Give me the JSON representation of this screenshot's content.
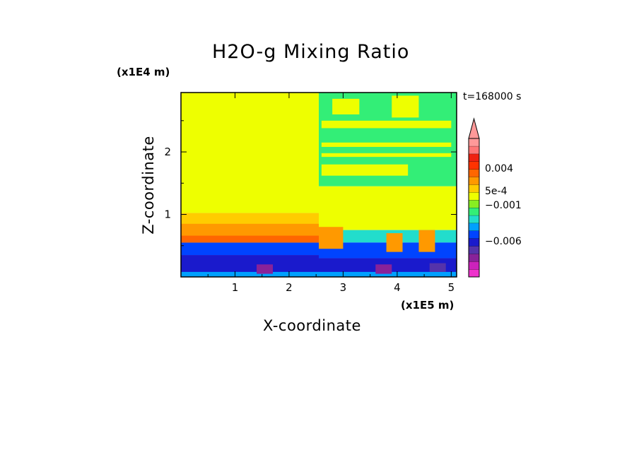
{
  "chart_data": {
    "type": "heatmap",
    "title": "H2O-g Mixing Ratio",
    "xlabel": "X-coordinate",
    "ylabel": "Z-coordinate",
    "x_exponent_label": "(x1E5 m)",
    "y_exponent_label": "(x1E4 m)",
    "time_label": "t=168000 s",
    "xlim": [
      0,
      5.1
    ],
    "ylim": [
      0,
      2.95
    ],
    "x_ticks": [
      1,
      2,
      3,
      4,
      5
    ],
    "y_ticks": [
      1,
      2
    ],
    "x_tick_labels": [
      "1",
      "2",
      "3",
      "4",
      "5"
    ],
    "y_tick_labels": [
      "1",
      "2"
    ],
    "colorbar": {
      "colors": [
        "#ee33cc",
        "#cc22bb",
        "#882299",
        "#5533aa",
        "#1a1acc",
        "#0044ff",
        "#00a0ff",
        "#22ddcc",
        "#33ee77",
        "#88ee22",
        "#eeff00",
        "#ffcc00",
        "#ff9900",
        "#ff6600",
        "#ff3300",
        "#ee2211",
        "#ff7777",
        "#ff9999"
      ],
      "tick_labels": [
        {
          "value": 0.004,
          "label": "0.004"
        },
        {
          "value": 0.0005,
          "label": "5e-4"
        },
        {
          "value": -0.001,
          "label": "−0.001"
        },
        {
          "value": -0.006,
          "label": "−0.006"
        }
      ],
      "extend": "max"
    },
    "regions": [
      {
        "x": [
          0,
          2.55
        ],
        "z": [
          1.02,
          2.95
        ],
        "color": "#eeff00"
      },
      {
        "x": [
          0,
          2.55
        ],
        "z": [
          0.55,
          1.02
        ],
        "color": "#ff9900"
      },
      {
        "x": [
          0,
          2.55
        ],
        "z": [
          0.35,
          0.55
        ],
        "color": "#0044ff"
      },
      {
        "x": [
          0,
          2.55
        ],
        "z": [
          0,
          0.35
        ],
        "color": "#1a1acc"
      },
      {
        "x": [
          2.55,
          5.1
        ],
        "z": [
          1.45,
          2.95
        ],
        "color": "#33ee77"
      },
      {
        "x": [
          2.55,
          5.1
        ],
        "z": [
          0.75,
          1.45
        ],
        "color": "#eeff00"
      },
      {
        "x": [
          2.55,
          5.1
        ],
        "z": [
          0.55,
          0.75
        ],
        "color": "#22ddcc"
      },
      {
        "x": [
          2.55,
          5.1
        ],
        "z": [
          0.3,
          0.55
        ],
        "color": "#0044ff"
      },
      {
        "x": [
          2.55,
          5.1
        ],
        "z": [
          0,
          0.3
        ],
        "color": "#1a1acc"
      }
    ],
    "features": [
      {
        "x": [
          2.6,
          5.0
        ],
        "z": [
          2.38,
          2.5
        ],
        "color": "#eeff00"
      },
      {
        "x": [
          2.6,
          5.0
        ],
        "z": [
          2.08,
          2.15
        ],
        "color": "#eeff00"
      },
      {
        "x": [
          2.6,
          5.0
        ],
        "z": [
          1.92,
          1.98
        ],
        "color": "#eeff00"
      },
      {
        "x": [
          2.6,
          4.2
        ],
        "z": [
          1.62,
          1.8
        ],
        "color": "#eeff00"
      },
      {
        "x": [
          2.8,
          3.3
        ],
        "z": [
          2.6,
          2.85
        ],
        "color": "#eeff00"
      },
      {
        "x": [
          3.9,
          4.4
        ],
        "z": [
          2.55,
          2.9
        ],
        "color": "#eeff00"
      },
      {
        "x": [
          0,
          2.55
        ],
        "z": [
          0.85,
          1.02
        ],
        "color": "#ffcc00"
      },
      {
        "x": [
          0,
          2.55
        ],
        "z": [
          0.55,
          0.66
        ],
        "color": "#ff6600"
      },
      {
        "x": [
          2.55,
          3.0
        ],
        "z": [
          0.45,
          0.8
        ],
        "color": "#ff9900"
      },
      {
        "x": [
          3.8,
          4.1
        ],
        "z": [
          0.4,
          0.7
        ],
        "color": "#ff9900"
      },
      {
        "x": [
          4.4,
          4.7
        ],
        "z": [
          0.4,
          0.75
        ],
        "color": "#ff9900"
      },
      {
        "x": [
          0,
          5.1
        ],
        "z": [
          0,
          0.08
        ],
        "color": "#00a0ff"
      },
      {
        "x": [
          1.4,
          1.7
        ],
        "z": [
          0.05,
          0.2
        ],
        "color": "#882299"
      },
      {
        "x": [
          3.6,
          3.9
        ],
        "z": [
          0.05,
          0.2
        ],
        "color": "#882299"
      },
      {
        "x": [
          4.6,
          4.9
        ],
        "z": [
          0.08,
          0.22
        ],
        "color": "#5533aa"
      }
    ]
  }
}
